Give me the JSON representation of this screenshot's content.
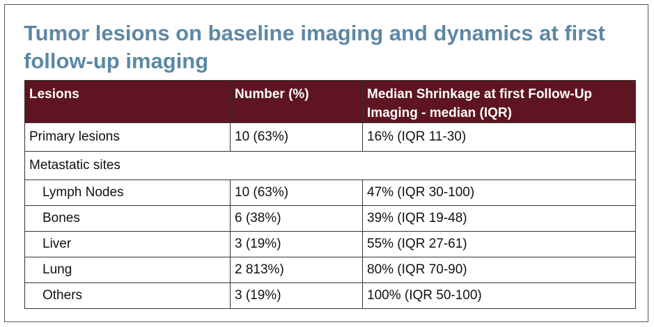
{
  "title": "Tumor lesions on baseline imaging and dynamics at first follow-up imaging",
  "table": {
    "header": [
      "Lesions",
      "Number (%)",
      "Median Shrinkage at first Follow-Up Imaging - median (IQR)"
    ],
    "rows": [
      [
        "Primary lesions",
        "10 (63%)",
        "16% (IQR 11-30)"
      ],
      [
        "Metastatic sites",
        "",
        ""
      ],
      [
        "Lymph Nodes",
        "10 (63%)",
        "47% (IQR 30-100)"
      ],
      [
        "Bones",
        "6 (38%)",
        "39% (IQR 19-48)"
      ],
      [
        "Liver",
        "3 (19%)",
        "55% (IQR 27-61)"
      ],
      [
        "Lung",
        "2 813%)",
        "80% (IQR 70-90)"
      ],
      [
        "Others",
        "3 (19%)",
        "100% (IQR 50-100)"
      ]
    ]
  }
}
